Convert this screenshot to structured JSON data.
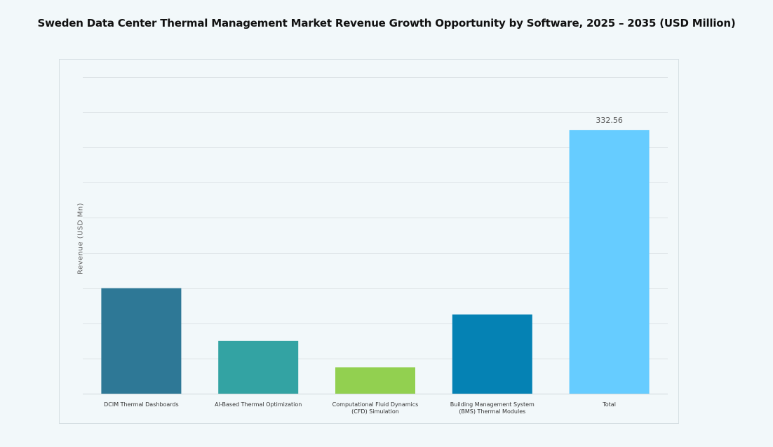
{
  "chart_data": {
    "type": "bar",
    "title": "Sweden Data Center Thermal Management Market Revenue Growth Opportunity by Software, 2025 – 2035 (USD Million)",
    "xlabel": "",
    "ylabel": "Revenue (USD Mn)",
    "categories": [
      [
        "DCIM Thermal Dashboards"
      ],
      [
        "AI-Based Thermal Optimization"
      ],
      [
        "Computational Fluid Dynamics",
        "(CFD) Simulation"
      ],
      [
        "Building Management System",
        "(BMS) Thermal Modules"
      ],
      [
        "Total"
      ]
    ],
    "values": [
      133.02,
      66.51,
      33.26,
      99.77,
      332.56
    ],
    "data_labels": [
      null,
      null,
      null,
      null,
      "332.56"
    ],
    "colors": [
      "#2e7896",
      "#33a3a3",
      "#92d050",
      "#0582b4",
      "#66ccff"
    ],
    "ylim": [
      0,
      399.07
    ],
    "gridlines": 9,
    "grid": true,
    "legend": "none"
  }
}
